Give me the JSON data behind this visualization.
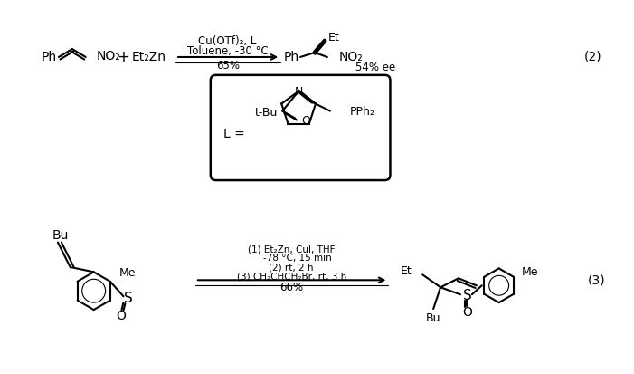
{
  "background_color": "#ffffff",
  "figsize": [
    7.01,
    4.13
  ],
  "dpi": 100,
  "reaction1": {
    "equation_number": "(2)",
    "arrow_above1": "Cu(OTf)₂, L",
    "arrow_above2": "Toluene, -30 °C",
    "arrow_below": "65%",
    "yield_ee": "54% ee",
    "ligand_label": "L =",
    "ligand_tbu": "t-Bu",
    "ligand_o": "O",
    "ligand_pph2": "PPh₂"
  },
  "reaction2": {
    "equation_number": "(3)",
    "arrow_above1": "(1) Et₂Zn, CuI, THF",
    "arrow_above2": "    -78 °C, 15 min",
    "arrow_above3": "(2) rt, 2 h",
    "arrow_above4": "(3) CH₂CHCH₂Br, rt, 3 h",
    "arrow_below": "66%"
  }
}
